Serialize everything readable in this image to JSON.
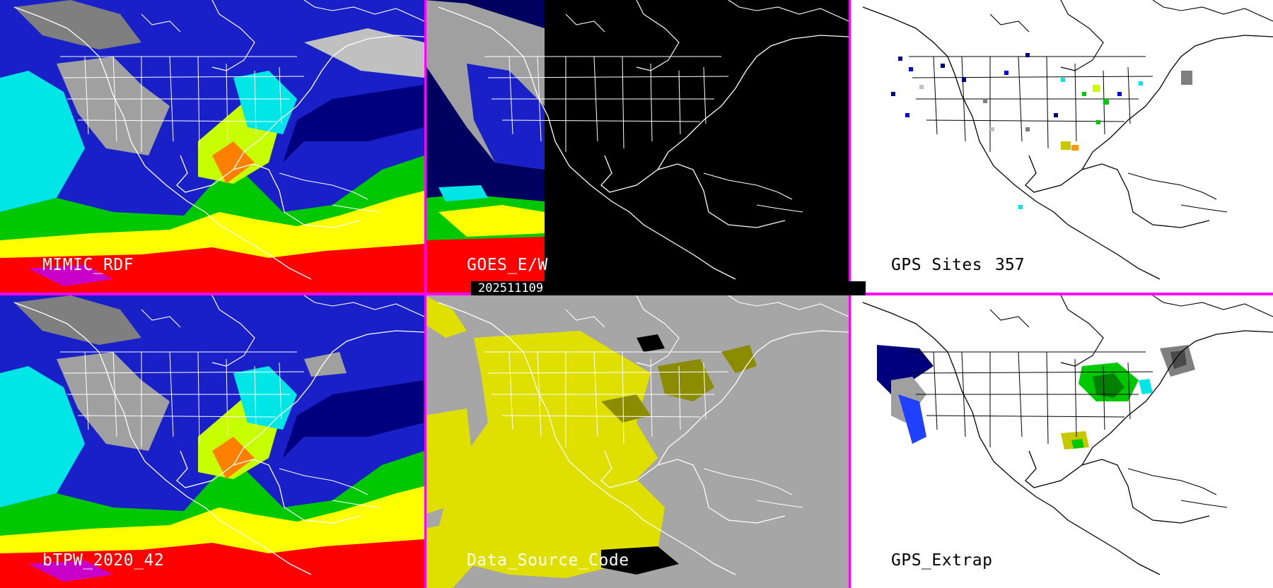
{
  "panels": {
    "mimic_rdf": {
      "label": "MIMIC_RDF"
    },
    "goes": {
      "label": "GOES_E/W"
    },
    "gps_sites": {
      "label": "GPS Sites",
      "count": "357"
    },
    "btpw": {
      "label": "bTPW_2020_42"
    },
    "data_source": {
      "label": "Data_Source_Code"
    },
    "gps_extrap": {
      "label": "GPS_Extrap"
    }
  },
  "timestamp": "202511109",
  "colors": {
    "separator": "#ff00ff",
    "tpw_scale": [
      "#7f7f7f",
      "#c0c0c0",
      "#00007f",
      "#0000e0",
      "#2080ff",
      "#00ffff",
      "#00c800",
      "#c8ff00",
      "#ffff00",
      "#ff0000",
      "#c800c8"
    ],
    "data_source_background": "#a6a6a6",
    "data_source_yellow": "#e0e000",
    "data_source_olive": "#8c8c00"
  }
}
